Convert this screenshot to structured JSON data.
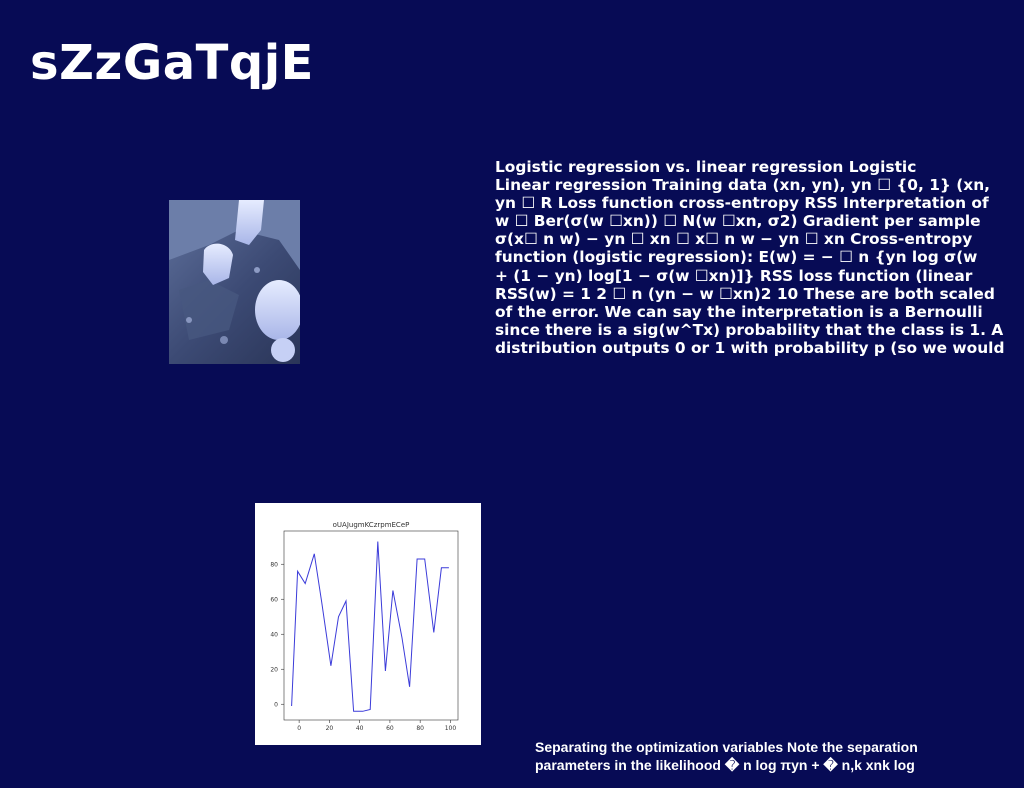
{
  "slide": {
    "title": "sZzGaTqjE",
    "body_lines": [
      "Logistic regression vs. linear regression Logistic",
      "Linear regression Training data (xn, yn), yn ☐ {0, 1} (xn,",
      "yn ☐ R Loss function cross-entropy RSS Interpretation of",
      "w ☐ Ber(σ(w ☐xn)) ☐ N(w ☐xn, σ2) Gradient per sample",
      "σ(x☐ n w) − yn ☐ xn ☐ x☐ n w − yn ☐ xn Cross-entropy",
      "function (logistic regression): E(w) = − ☐ n {yn log σ(w",
      "+ (1 − yn) log[1 − σ(w ☐xn)]} RSS loss function (linear",
      "RSS(w) = 1 2 ☐ n (yn − w ☐xn)2 10 These are both scaled",
      "of the error. We can say the interpretation is a Bernoulli",
      "since there is a sig(w^Tx) probability that the class is 1. A",
      "distribution outputs 0 or 1 with probability p (so we would"
    ],
    "footer_lines": [
      "Separating the optimization variables Note the separation",
      "parameters in the likelihood � n log πyn + � n,k xnk log"
    ]
  },
  "colors": {
    "background": "#070b55",
    "text": "#ffffff",
    "line": "#3b3bd9"
  },
  "chart_data": {
    "type": "line",
    "title": "oUAJugmKCzrpmECeP",
    "xlabel": "",
    "ylabel": "",
    "x": [
      -5,
      -1,
      4,
      10,
      15,
      21,
      26,
      31,
      36,
      42,
      47,
      52,
      57,
      62,
      68,
      73,
      78,
      83,
      89,
      94,
      99
    ],
    "y": [
      -1,
      76,
      69,
      86,
      58,
      22,
      50,
      59,
      -4,
      -4,
      -3,
      93,
      19,
      65,
      38,
      10,
      83,
      83,
      41,
      78,
      78
    ],
    "xlim": [
      -10,
      105
    ],
    "ylim": [
      -9,
      99
    ],
    "xticks": [
      0,
      20,
      40,
      60,
      80,
      100
    ],
    "yticks": [
      0,
      20,
      40,
      60,
      80
    ],
    "grid": false
  }
}
